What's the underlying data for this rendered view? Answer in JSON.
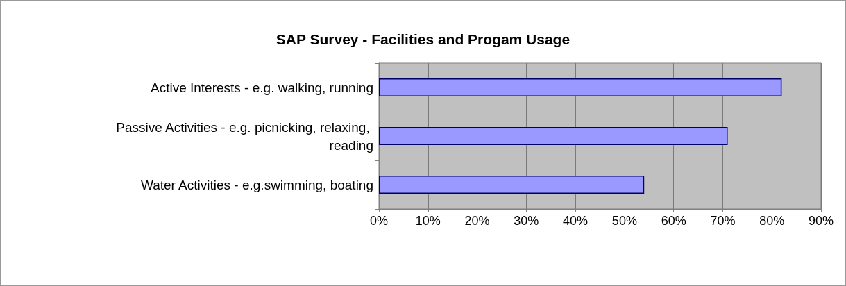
{
  "chart_data": {
    "type": "bar",
    "orientation": "horizontal",
    "title": "SAP Survey - Facilities and Progam Usage",
    "categories": [
      "Active Interests - e.g. walking, running",
      "Passive Activities - e.g. picnicking, relaxing, reading",
      "Water Activities - e.g.swimming, boating"
    ],
    "values": [
      82,
      71,
      54
    ],
    "color": "#9999ff",
    "xlim": [
      0,
      90
    ],
    "xticks": [
      {
        "value": 0,
        "label": "0%"
      },
      {
        "value": 10,
        "label": "10%"
      },
      {
        "value": 20,
        "label": "20%"
      },
      {
        "value": 30,
        "label": "30%"
      },
      {
        "value": 40,
        "label": "40%"
      },
      {
        "value": 50,
        "label": "50%"
      },
      {
        "value": 60,
        "label": "60%"
      },
      {
        "value": 70,
        "label": "70%"
      },
      {
        "value": 80,
        "label": "80%"
      },
      {
        "value": 90,
        "label": "90%"
      }
    ],
    "grid": "x"
  }
}
